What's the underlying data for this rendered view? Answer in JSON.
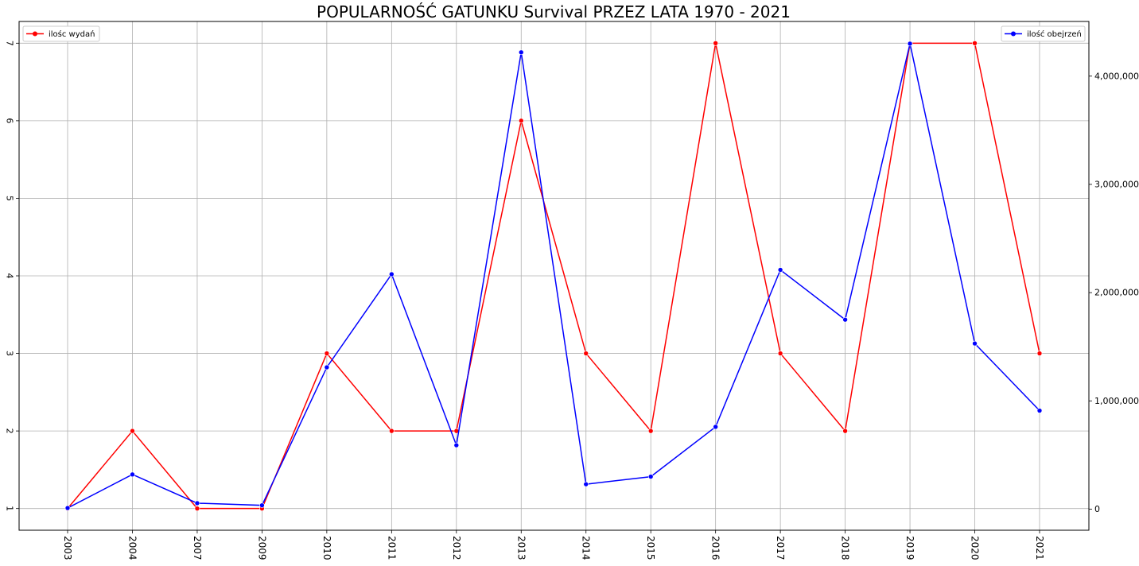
{
  "chart_data": {
    "type": "line",
    "title": "POPULARNOŚĆ GATUNKU Survival PRZEZ LATA 1970 - 2021",
    "categories": [
      "2003",
      "2004",
      "2007",
      "2009",
      "2010",
      "2011",
      "2012",
      "2013",
      "2014",
      "2015",
      "2016",
      "2017",
      "2018",
      "2019",
      "2020",
      "2021"
    ],
    "grid": true,
    "series": [
      {
        "name": "ilośc wydań",
        "axis": "left",
        "color": "#ff0000",
        "values": [
          1,
          2,
          1,
          1,
          3,
          2,
          2,
          6,
          3,
          2,
          7,
          3,
          2,
          7,
          7,
          3
        ],
        "legend_position": "upper-left"
      },
      {
        "name": "ilość obejrzeń",
        "axis": "right",
        "color": "#0000ff",
        "values": [
          10000,
          320000,
          55000,
          35000,
          1310000,
          2170000,
          590000,
          4220000,
          230000,
          300000,
          760000,
          2210000,
          1750000,
          4300000,
          1530000,
          910000
        ],
        "legend_position": "upper-right"
      }
    ],
    "y_left": {
      "ticks": [
        1,
        2,
        3,
        4,
        5,
        6,
        7
      ],
      "tick_labels": [
        "1",
        "2",
        "3",
        "4",
        "5",
        "6",
        "7"
      ],
      "ylim": [
        0.72,
        7.28
      ]
    },
    "y_right": {
      "ticks": [
        0,
        1000000,
        2000000,
        3000000,
        4000000
      ],
      "tick_labels": [
        "0",
        "1,000,000",
        "2,000,000",
        "3,000,000",
        "4,000,000"
      ],
      "ylim": [
        -195000,
        4505000
      ]
    }
  }
}
